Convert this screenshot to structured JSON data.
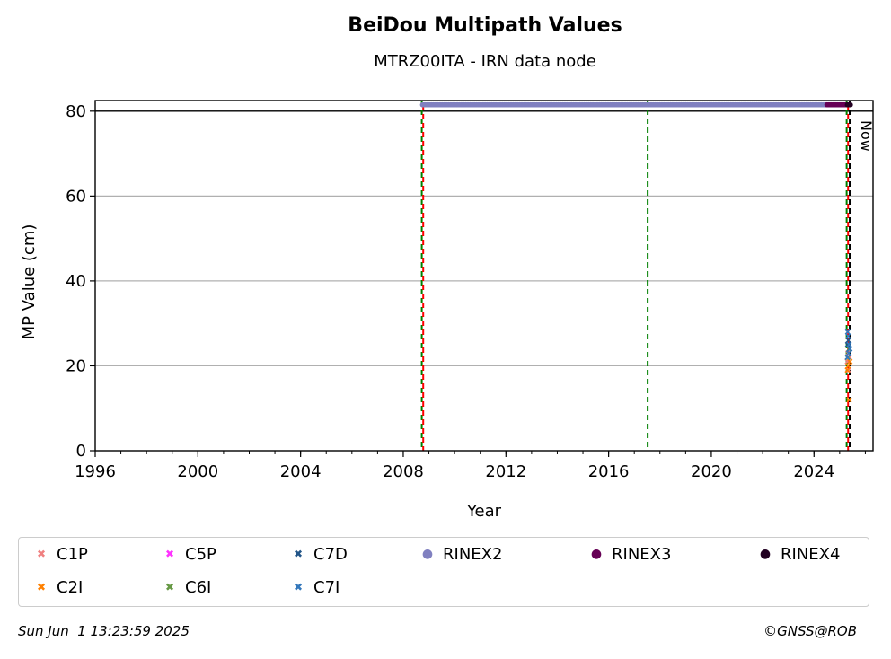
{
  "chart_data": {
    "type": "scatter",
    "title": "BeiDou Multipath Values",
    "subtitle": "MTRZ00ITA - IRN data node",
    "xlabel": "Year",
    "ylabel": "MP Value (cm)",
    "xlim": [
      1996,
      2026.3
    ],
    "ylim": [
      0,
      82.5
    ],
    "xticks": [
      "1996",
      "2000",
      "2004",
      "2008",
      "2012",
      "2016",
      "2020",
      "2024"
    ],
    "yticks": [
      "0",
      "20",
      "40",
      "60",
      "80"
    ],
    "grid": "y",
    "threshold_line": 80,
    "vertical_lines": [
      {
        "x": 2008.75,
        "style": "dashed",
        "colors": [
          "#008000",
          "#ff0000"
        ]
      },
      {
        "x": 2017.55,
        "style": "dashed",
        "colors": [
          "#008000"
        ]
      },
      {
        "x": 2025.3,
        "style": "dashed",
        "colors": [
          "#008000",
          "#ff0000"
        ]
      },
      {
        "x": 2025.42,
        "style": "dashed",
        "colors": [
          "#000000"
        ],
        "label": "Now"
      }
    ],
    "series": [
      {
        "name": "C1P",
        "marker": "x",
        "color": "#f08080",
        "points": [
          [
            2025.3,
            21
          ],
          [
            2025.32,
            23
          ],
          [
            2025.35,
            19
          ],
          [
            2025.38,
            22
          ]
        ]
      },
      {
        "name": "C2I",
        "marker": "x",
        "color": "#ff8000",
        "points": [
          [
            2025.3,
            19
          ],
          [
            2025.33,
            20
          ],
          [
            2025.37,
            12
          ],
          [
            2025.4,
            21
          ]
        ]
      },
      {
        "name": "C5P",
        "marker": "x",
        "color": "#ff33ff",
        "points": []
      },
      {
        "name": "C6I",
        "marker": "x",
        "color": "#669944",
        "points": [
          [
            2025.32,
            22
          ],
          [
            2025.36,
            24
          ]
        ]
      },
      {
        "name": "C7D",
        "marker": "x",
        "color": "#225588",
        "points": [
          [
            2025.31,
            25
          ],
          [
            2025.34,
            26
          ],
          [
            2025.39,
            24
          ]
        ]
      },
      {
        "name": "C7I",
        "marker": "x",
        "color": "#3377bb",
        "points": [
          [
            2025.3,
            22
          ],
          [
            2025.31,
            28
          ],
          [
            2025.33,
            27
          ],
          [
            2025.35,
            23
          ],
          [
            2025.37,
            25
          ],
          [
            2025.4,
            24
          ]
        ]
      },
      {
        "name": "RINEX2",
        "marker": "o",
        "color": "#8080c0",
        "range": [
          2008.75,
          2025.3
        ],
        "y": 81.5
      },
      {
        "name": "RINEX3",
        "marker": "o",
        "color": "#660055",
        "range": [
          2024.5,
          2025.42
        ],
        "y": 81.5
      },
      {
        "name": "RINEX4",
        "marker": "o",
        "color": "#220022",
        "range": [
          2025.3,
          2025.42
        ],
        "y": 81.5
      }
    ]
  },
  "legend": [
    {
      "label": "C1P",
      "marker": "x",
      "color": "#f08080"
    },
    {
      "label": "C2I",
      "marker": "x",
      "color": "#ff8000"
    },
    {
      "label": "C5P",
      "marker": "x",
      "color": "#ff33ff"
    },
    {
      "label": "C6I",
      "marker": "x",
      "color": "#669944"
    },
    {
      "label": "C7D",
      "marker": "x",
      "color": "#225588"
    },
    {
      "label": "C7I",
      "marker": "x",
      "color": "#3377bb"
    },
    {
      "label": "RINEX2",
      "marker": "o",
      "color": "#8080c0"
    },
    {
      "label": "RINEX3",
      "marker": "o",
      "color": "#660055"
    },
    {
      "label": "RINEX4",
      "marker": "o",
      "color": "#220022"
    }
  ],
  "footer": {
    "timestamp": "Sun Jun  1 13:23:59 2025",
    "copyright": "©GNSS@ROB"
  }
}
